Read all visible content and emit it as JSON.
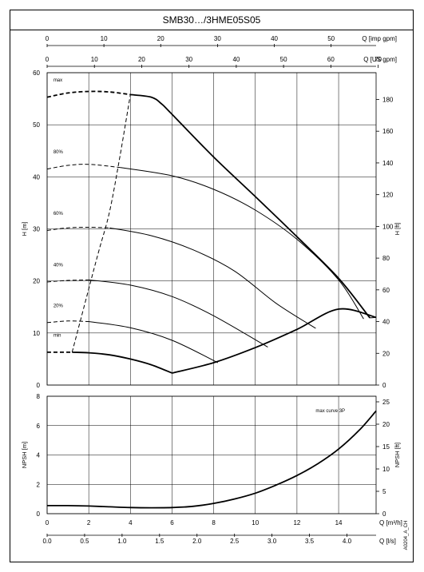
{
  "title": "SMB30…/3HME05S05",
  "footer_code": "A0204_A_CH",
  "chart_data": [
    {
      "type": "line",
      "panel": "head",
      "top_axes": [
        {
          "label": "Q [imp gpm]",
          "ticks": [
            "0",
            "10",
            "20",
            "30",
            "40",
            "50"
          ],
          "tick_values": [
            0,
            10,
            20,
            30,
            40,
            50
          ]
        },
        {
          "label": "Q [US gpm]",
          "ticks": [
            "0",
            "10",
            "20",
            "30",
            "40",
            "50",
            "60",
            "70"
          ],
          "tick_values": [
            0,
            10,
            20,
            30,
            40,
            50,
            60,
            70
          ]
        }
      ],
      "ylabel": "H [m]",
      "ylabel_right": "H [ft]",
      "ylim": [
        0,
        60
      ],
      "yticks": [
        "0",
        "10",
        "20",
        "30",
        "40",
        "50",
        "60"
      ],
      "yticks_right": [
        "0",
        "20",
        "40",
        "60",
        "80",
        "100",
        "120",
        "140",
        "160",
        "180"
      ],
      "grid": true,
      "speed_labels": [
        "max",
        "80%",
        "60%",
        "40%",
        "20%",
        "min"
      ],
      "series": [
        {
          "name": "max",
          "dashed_x": [
            0,
            1,
            2,
            3,
            4
          ],
          "dashed_y": [
            55.3,
            56.1,
            56.4,
            56.3,
            55.8
          ],
          "x": [
            4,
            5,
            5.5,
            6,
            8,
            10,
            12,
            14,
            15.5
          ],
          "y": [
            55.8,
            55.3,
            54,
            52,
            43.8,
            36.2,
            28.5,
            20.5,
            12.9
          ]
        },
        {
          "name": "80%",
          "dashed_x": [
            0,
            1,
            2,
            3.5
          ],
          "dashed_y": [
            41.5,
            42.2,
            42.4,
            41.8
          ],
          "x": [
            3.5,
            6,
            8,
            10,
            12,
            14,
            15.2
          ],
          "y": [
            41.8,
            40.2,
            37.6,
            33.6,
            28,
            20.2,
            12.7
          ]
        },
        {
          "name": "60%",
          "dashed_x": [
            0,
            1,
            2,
            3
          ],
          "dashed_y": [
            29.7,
            30.2,
            30.3,
            30.2
          ],
          "x": [
            3,
            5,
            7,
            9,
            11,
            12.9
          ],
          "y": [
            30.2,
            28.7,
            26,
            21.9,
            15.7,
            10.9
          ]
        },
        {
          "name": "40%",
          "dashed_x": [
            0,
            1,
            2
          ],
          "dashed_y": [
            19.8,
            20.1,
            20.2
          ],
          "x": [
            2,
            4,
            6,
            8,
            10.6
          ],
          "y": [
            20.2,
            19.2,
            17,
            13.3,
            7.3
          ]
        },
        {
          "name": "20%",
          "dashed_x": [
            0,
            1,
            2
          ],
          "dashed_y": [
            12,
            12.3,
            12.2
          ],
          "x": [
            2,
            4,
            6,
            8.2
          ],
          "y": [
            12.2,
            11,
            8.6,
            4.3
          ]
        },
        {
          "name": "min",
          "dashed_x": [
            0,
            1.2
          ],
          "dashed_y": [
            6.3,
            6.3
          ],
          "x": [
            1.2,
            2,
            3,
            4,
            5,
            6
          ],
          "y": [
            6.3,
            6.2,
            5.8,
            5,
            3.9,
            2.3
          ]
        },
        {
          "name": "min-to-max boundary",
          "x": [
            6,
            8,
            10,
            12,
            14,
            15.8
          ],
          "y": [
            2.3,
            4.3,
            7.2,
            10.7,
            14.6,
            13
          ]
        },
        {
          "name": "max-speed limit",
          "x": [
            15.5,
            15.8
          ],
          "y": [
            12.9,
            13.0
          ]
        },
        {
          "name": "dashed limit",
          "x": [
            1.2,
            2,
            2.5,
            3,
            3.5,
            4
          ],
          "y": [
            6.3,
            18.5,
            26,
            33.3,
            44,
            55.8
          ]
        }
      ]
    },
    {
      "type": "line",
      "panel": "npsh",
      "ylabel": "NPSH [m]",
      "ylabel_right": "NPSH [ft]",
      "ylim": [
        0,
        8
      ],
      "yticks": [
        "0",
        "2",
        "4",
        "6",
        "8"
      ],
      "yticks_right": [
        "0",
        "5",
        "10",
        "15",
        "20",
        "25"
      ],
      "x_axes": [
        {
          "label": "Q [m³/h]",
          "ticks": [
            "0",
            "2",
            "4",
            "6",
            "8",
            "10",
            "12",
            "14"
          ],
          "tick_values": [
            0,
            2,
            4,
            6,
            8,
            10,
            12,
            14
          ]
        },
        {
          "label": "Q [l/s]",
          "ticks": [
            "0.0",
            "0.5",
            "1.0",
            "1.5",
            "2.0",
            "2.5",
            "3.0",
            "3.5",
            "4.0"
          ],
          "tick_values": [
            0,
            0.5,
            1,
            1.5,
            2,
            2.5,
            3,
            3.5,
            4
          ]
        }
      ],
      "xlim": [
        0,
        15.8
      ],
      "annotation": "max curve 3P",
      "grid": true,
      "series": [
        {
          "name": "",
          "x": [
            0,
            1,
            2,
            3,
            4,
            5,
            6,
            7,
            8,
            9,
            10,
            11,
            12,
            13,
            14,
            15,
            15.8
          ],
          "y": [
            0.55,
            0.55,
            0.52,
            0.47,
            0.42,
            0.4,
            0.42,
            0.5,
            0.7,
            1.0,
            1.4,
            1.95,
            2.6,
            3.4,
            4.4,
            5.7,
            7
          ]
        }
      ]
    }
  ]
}
